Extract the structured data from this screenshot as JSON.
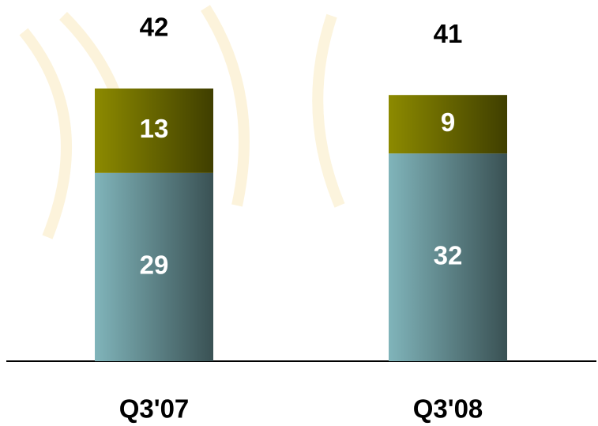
{
  "chart_data": {
    "type": "stacked-bar",
    "categories": [
      "Q3'07",
      "Q3'08"
    ],
    "series": [
      {
        "color": "#80b4ba",
        "values": [
          29,
          32
        ]
      },
      {
        "color": "#8c8a00",
        "values": [
          13,
          9
        ]
      }
    ],
    "totals": [
      42,
      41
    ]
  }
}
